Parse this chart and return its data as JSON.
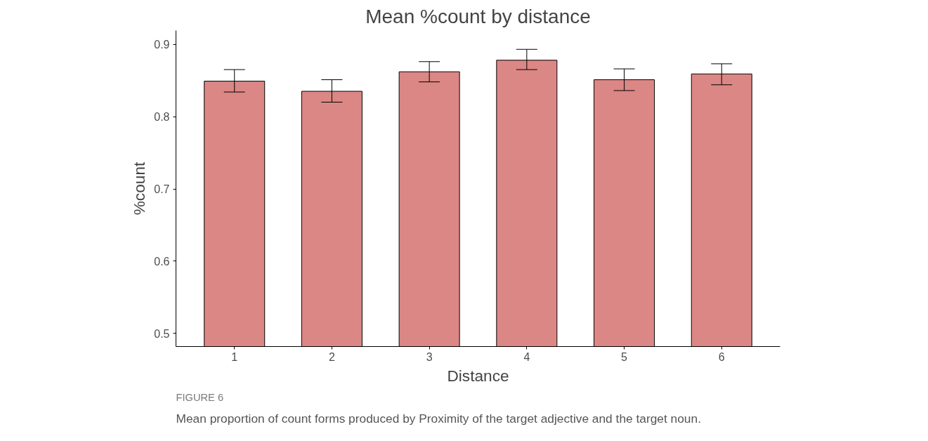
{
  "chart_data": {
    "type": "bar",
    "title": "Mean %count by distance",
    "xlabel": "Distance",
    "ylabel": "%count",
    "categories": [
      "1",
      "2",
      "3",
      "4",
      "5",
      "6"
    ],
    "values": [
      0.849,
      0.835,
      0.862,
      0.878,
      0.851,
      0.859
    ],
    "errors": [
      [
        0.834,
        0.865
      ],
      [
        0.82,
        0.851
      ],
      [
        0.848,
        0.876
      ],
      [
        0.865,
        0.893
      ],
      [
        0.836,
        0.866
      ],
      [
        0.844,
        0.873
      ]
    ],
    "color": "#db8785",
    "ylim": [
      0.482,
      0.919
    ],
    "yticks": [
      0.5,
      0.6,
      0.7,
      0.8,
      0.9
    ],
    "grid": false,
    "annotations": [
      "FIGURE 6",
      "Mean proportion of count forms produced by Proximity of the target adjective and the target noun."
    ]
  }
}
